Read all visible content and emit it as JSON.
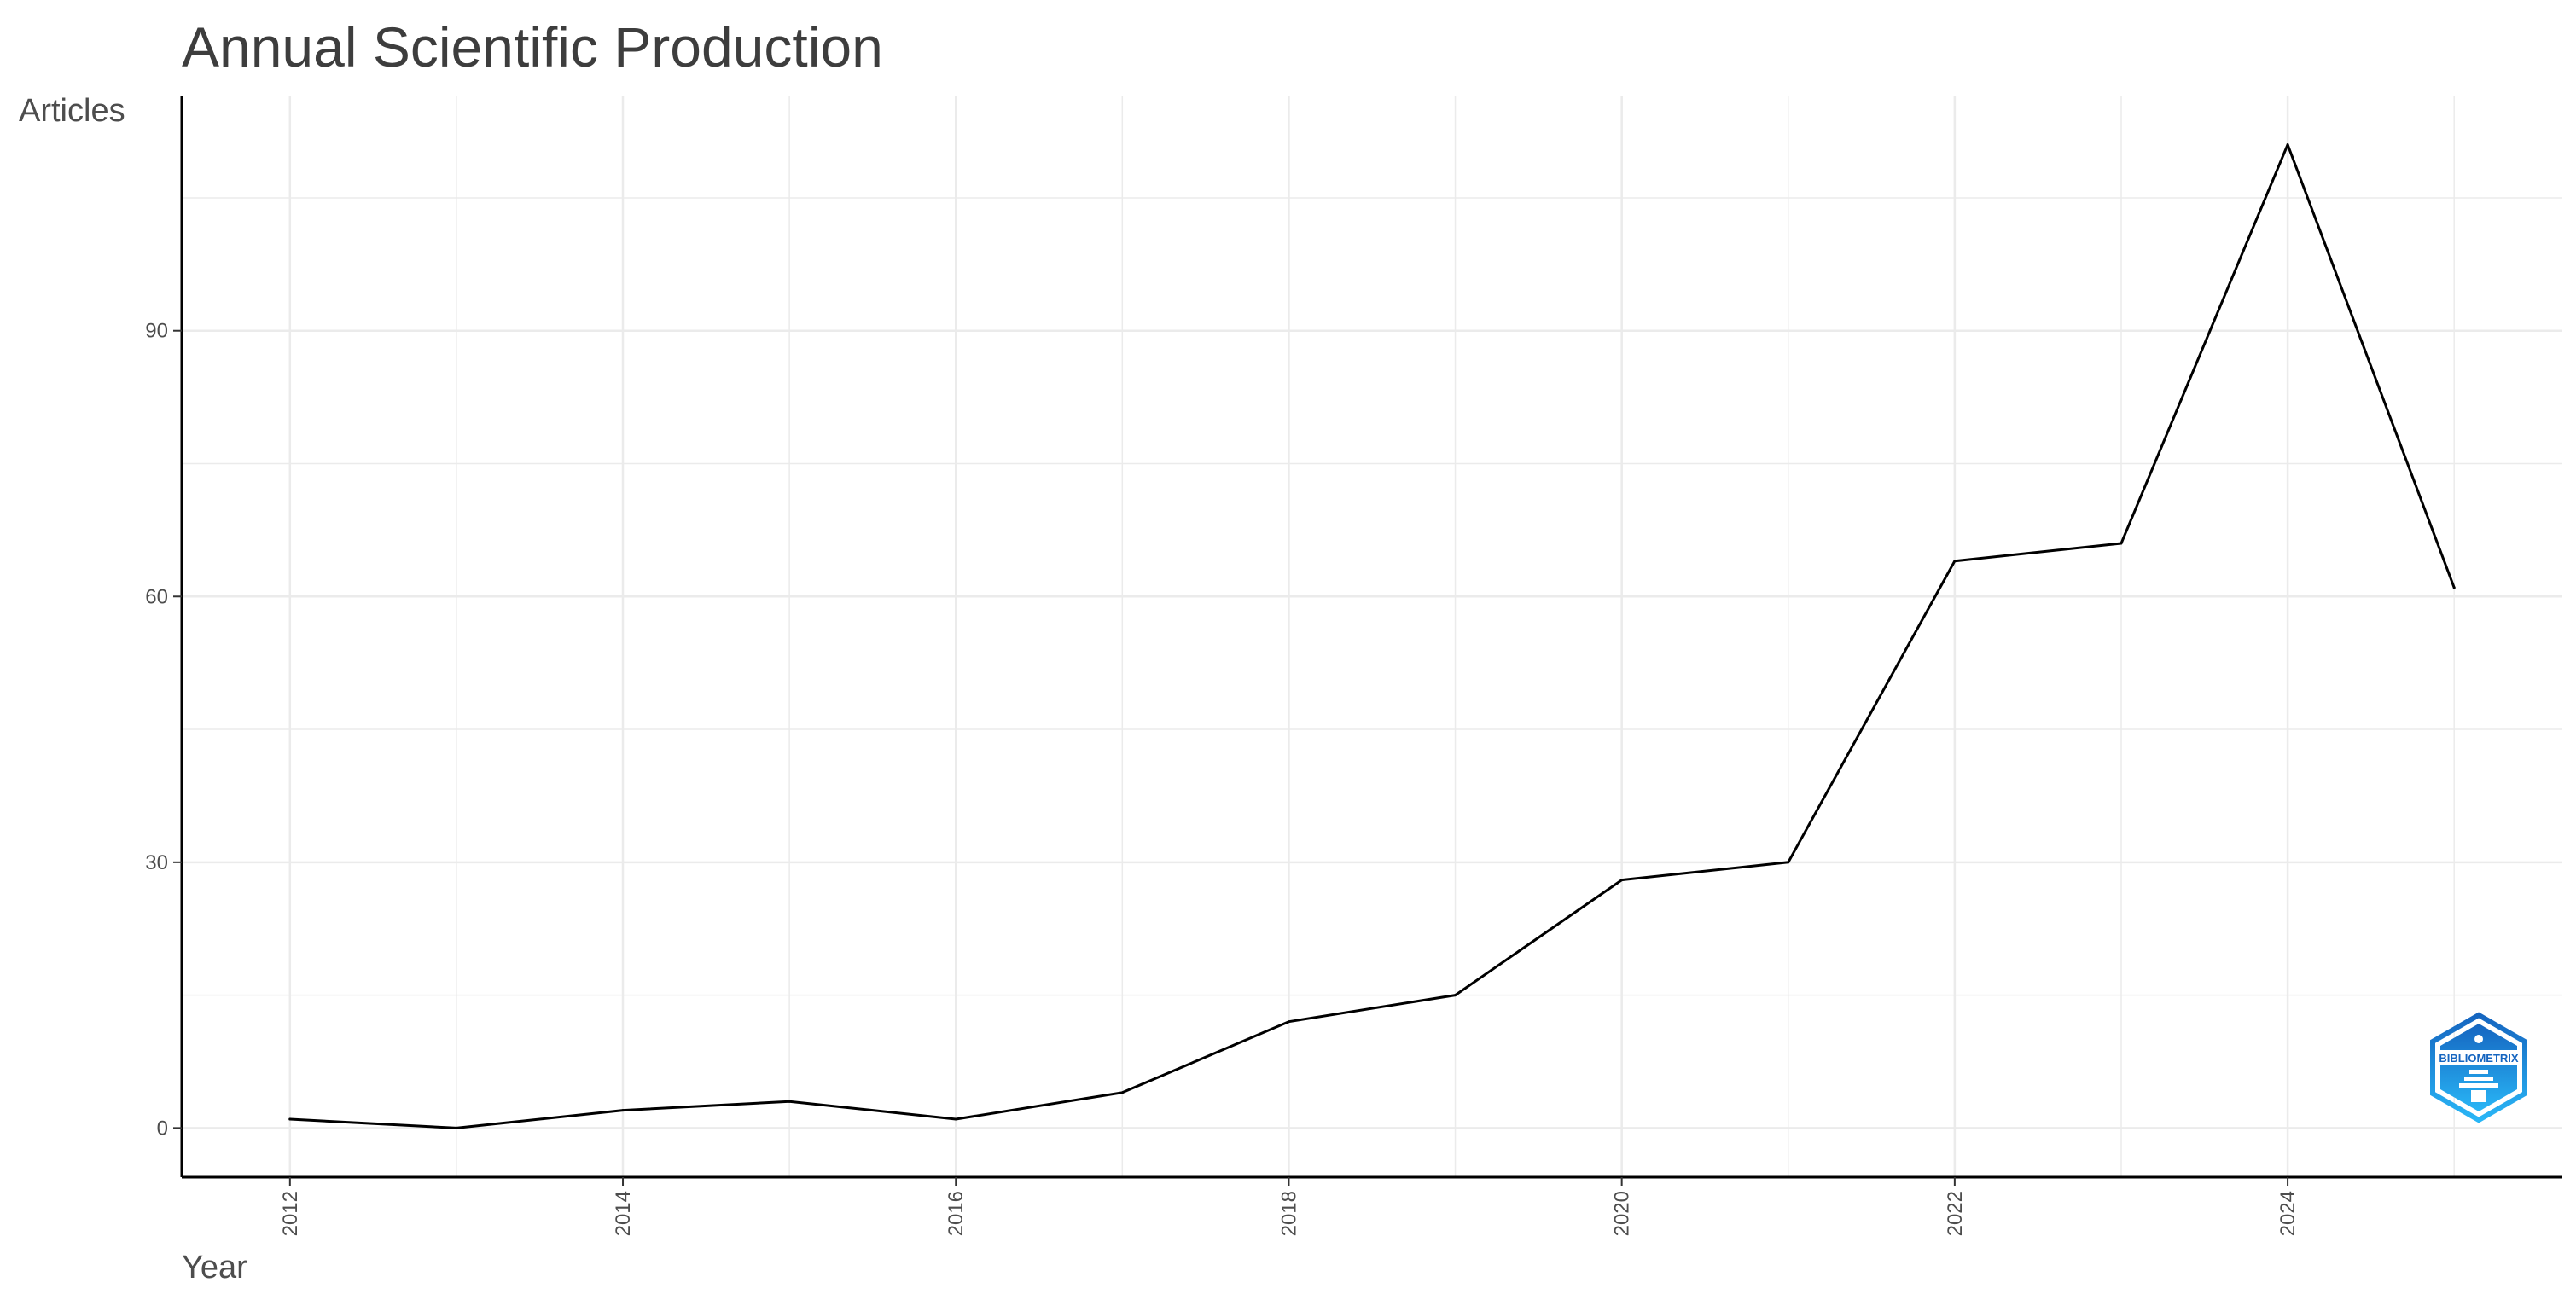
{
  "chart_data": {
    "type": "line",
    "title": "Annual Scientific Production",
    "xlabel": "Year",
    "ylabel": "Articles",
    "x": [
      2012,
      2013,
      2014,
      2015,
      2016,
      2017,
      2018,
      2019,
      2020,
      2021,
      2022,
      2023,
      2024,
      2025
    ],
    "series": [
      {
        "values": [
          1,
          0,
          2,
          3,
          1,
          4,
          12,
          15,
          28,
          30,
          64,
          66,
          111,
          61
        ]
      }
    ],
    "xlim": [
      2011.35,
      2025.65
    ],
    "ylim": [
      -5.55,
      116.55
    ],
    "x_ticks": [
      "2012",
      "2014",
      "2016",
      "2018",
      "2020",
      "2022",
      "2024"
    ],
    "y_ticks": [
      "0",
      "30",
      "60",
      "90"
    ],
    "grid": true,
    "legend": "none",
    "line_color": "#000000",
    "grid_color": "#ebebeb"
  },
  "watermark": {
    "text": "BIBLIOMETRIX",
    "colors": [
      "#1565c0",
      "#29b6f6"
    ]
  }
}
